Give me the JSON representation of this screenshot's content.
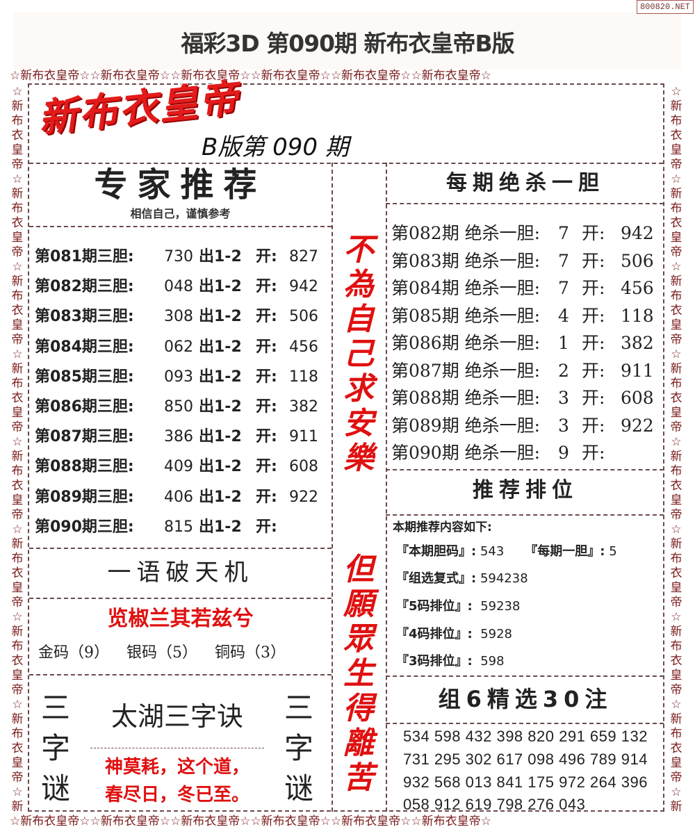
{
  "header": {
    "title": "福彩3D 第090期 新布衣皇帝B版",
    "watermark": "800820.NET"
  },
  "border": {
    "pattern": "☆新布衣皇帝☆",
    "repeat_row": "☆新布衣皇帝☆☆新布衣皇帝☆☆新布衣皇帝☆☆新布衣皇帝☆☆新布衣皇帝☆☆新布衣皇帝☆",
    "repeat_col": "☆新布衣皇帝☆新布衣皇帝☆新布衣皇帝☆新布衣皇帝☆新布衣皇帝☆新布衣皇帝☆新布衣皇帝☆新布衣皇帝☆新布衣皇帝☆"
  },
  "logo": {
    "text": "新布衣皇帝",
    "subtitle": "B版第 090 期"
  },
  "expert": {
    "title": "专家推荐",
    "subtitle": "相信自己，谨慎参考",
    "rows": [
      {
        "label": "第081期三胆:",
        "nums": "730",
        "out": "出1-2",
        "open_label": "开:",
        "open": "827"
      },
      {
        "label": "第082期三胆:",
        "nums": "048",
        "out": "出1-2",
        "open_label": "开:",
        "open": "942"
      },
      {
        "label": "第083期三胆:",
        "nums": "308",
        "out": "出1-2",
        "open_label": "开:",
        "open": "506"
      },
      {
        "label": "第084期三胆:",
        "nums": "062",
        "out": "出1-2",
        "open_label": "开:",
        "open": "456"
      },
      {
        "label": "第085期三胆:",
        "nums": "093",
        "out": "出1-2",
        "open_label": "开:",
        "open": "118"
      },
      {
        "label": "第086期三胆:",
        "nums": "850",
        "out": "出1-2",
        "open_label": "开:",
        "open": "382"
      },
      {
        "label": "第087期三胆:",
        "nums": "386",
        "out": "出1-2",
        "open_label": "开:",
        "open": "911"
      },
      {
        "label": "第088期三胆:",
        "nums": "409",
        "out": "出1-2",
        "open_label": "开:",
        "open": "608"
      },
      {
        "label": "第089期三胆:",
        "nums": "406",
        "out": "出1-2",
        "open_label": "开:",
        "open": "922"
      },
      {
        "label": "第090期三胆:",
        "nums": "815",
        "out": "出1-2",
        "open_label": "开:",
        "open": ""
      }
    ]
  },
  "middle": {
    "top": "不為自己求安樂",
    "bottom": "但願眾生得離苦"
  },
  "kill": {
    "title": "每期绝杀一胆",
    "rows": [
      {
        "label": "第082期 绝杀一胆:",
        "num": "7",
        "open_label": "开:",
        "open": "942"
      },
      {
        "label": "第083期 绝杀一胆:",
        "num": "7",
        "open_label": "开:",
        "open": "506"
      },
      {
        "label": "第084期 绝杀一胆:",
        "num": "7",
        "open_label": "开:",
        "open": "456"
      },
      {
        "label": "第085期 绝杀一胆:",
        "num": "4",
        "open_label": "开:",
        "open": "118"
      },
      {
        "label": "第086期 绝杀一胆:",
        "num": "1",
        "open_label": "开:",
        "open": "382"
      },
      {
        "label": "第087期 绝杀一胆:",
        "num": "2",
        "open_label": "开:",
        "open": "911"
      },
      {
        "label": "第088期 绝杀一胆:",
        "num": "3",
        "open_label": "开:",
        "open": "608"
      },
      {
        "label": "第089期 绝杀一胆:",
        "num": "3",
        "open_label": "开:",
        "open": "922"
      },
      {
        "label": "第090期 绝杀一胆:",
        "num": "9",
        "open_label": "开:",
        "open": ""
      }
    ]
  },
  "riddle": {
    "title": "一语破天机",
    "phrase": "览椒兰其若兹兮",
    "gold": "金码（9）",
    "silver": "银码（5）",
    "copper": "铜码（3）"
  },
  "poem": {
    "side": "三字谜",
    "title": "太湖三字诀",
    "line1": "神莫耗，这个道，",
    "line2": "春尽日，冬已至。"
  },
  "rank": {
    "title": "推荐排位",
    "intro": "本期推荐内容如下:",
    "dan_label": "『本期胆码』:",
    "dan": "543",
    "one_label": "『每期一胆』:",
    "one": "5",
    "fushi_label": "『组选复式』:",
    "fushi": "594238",
    "p5_label": "『5码排位』:",
    "p5": "59238",
    "p4_label": "『4码排位』:",
    "p4": "5928",
    "p3_label": "『3码排位』:",
    "p3": "598"
  },
  "group6": {
    "title": "组6精选30注",
    "lines": [
      "534 598 432 398 820 291 659 132",
      "731 295 302 617 098 496 789 914",
      "932 568 013 841 175 972 264 396",
      "058 912 619 798 276 043"
    ]
  },
  "colors": {
    "accent_red": "#e31b1b",
    "border": "#7a1a1a"
  }
}
